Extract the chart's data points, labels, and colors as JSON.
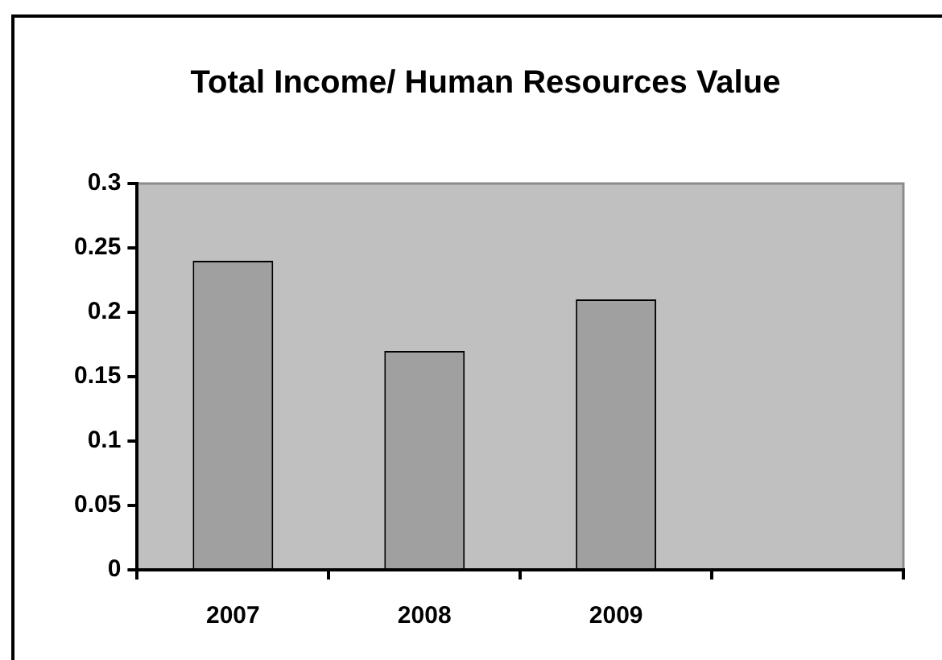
{
  "chart_data": {
    "type": "bar",
    "title": "Total Income/ Human Resources Value",
    "categories": [
      "2007",
      "2008",
      "2009",
      null
    ],
    "values": [
      0.24,
      0.17,
      0.21,
      null
    ],
    "color": "#a0a0a0",
    "ylim": [
      0,
      0.3
    ],
    "yticks": [
      0,
      0.05,
      0.1,
      0.15,
      0.2,
      0.25,
      0.3
    ],
    "grid": false,
    "legend": false
  }
}
